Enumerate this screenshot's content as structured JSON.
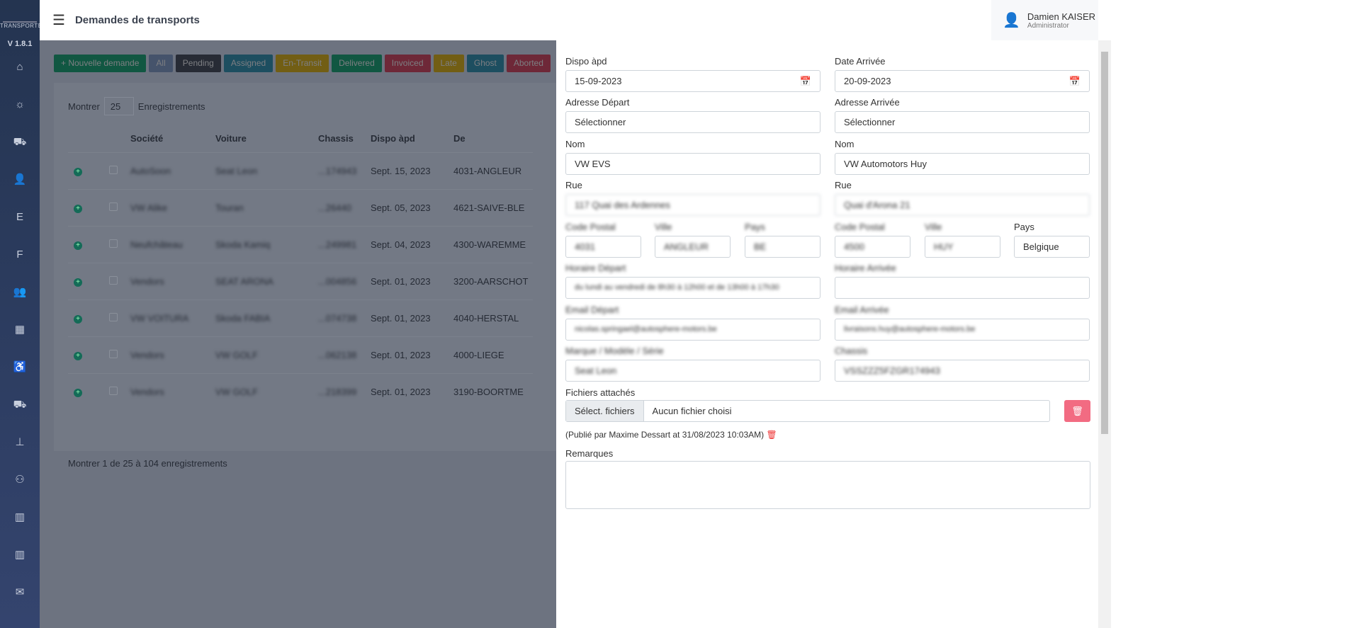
{
  "app": {
    "logo_text": "TRANSPORTER",
    "version": "V 1.8.1",
    "title": "Demandes de transports"
  },
  "user": {
    "name": "Damien KAISER",
    "role": "Administrator"
  },
  "sidebar": {
    "icons": [
      "home-icon",
      "lightbulb-icon",
      "truck-icon",
      "user-icon",
      "E",
      "F",
      "users-icon",
      "calendar-icon",
      "wheelchair-icon",
      "truck-icon",
      "sitemap-icon",
      "group-icon",
      "map-icon",
      "map-icon",
      "mail-icon"
    ]
  },
  "filters": [
    {
      "label": "+ Nouvelle demande",
      "color": "#1c8c6a"
    },
    {
      "label": "All",
      "color": "#6f86ad"
    },
    {
      "label": "Pending",
      "color": "#3f4656"
    },
    {
      "label": "Assigned",
      "color": "#2e7d9b"
    },
    {
      "label": "En-Transit",
      "color": "#b89820"
    },
    {
      "label": "Delivered",
      "color": "#1c8c6a"
    },
    {
      "label": "Invoiced",
      "color": "#b2415a"
    },
    {
      "label": "Late",
      "color": "#b89820"
    },
    {
      "label": "Ghost",
      "color": "#2e7d9b"
    },
    {
      "label": "Aborted",
      "color": "#b2415a"
    }
  ],
  "table": {
    "show_label": "Montrer",
    "page_size": "25",
    "records_label": "Enregistrements",
    "columns": [
      "Société",
      "Voiture",
      "Chassis",
      "Dispo àpd",
      "De"
    ],
    "rows": [
      [
        "AutoSoon",
        "Seat Leon",
        "...174943",
        "Sept. 15, 2023",
        "4031-ANGLEUR"
      ],
      [
        "VW Alike",
        "Touran",
        "...26440",
        "Sept. 05, 2023",
        "4621-SAIVE-BLE"
      ],
      [
        "Neufchâteau",
        "Skoda Kamiq",
        "...249981",
        "Sept. 04, 2023",
        "4300-WAREMME"
      ],
      [
        "Vendors",
        "SEAT ARONA",
        "...004856",
        "Sept. 01, 2023",
        "3200-AARSCHOT"
      ],
      [
        "VW VOITURA",
        "Skoda FABIA",
        "...074738",
        "Sept. 01, 2023",
        "4040-HERSTAL"
      ],
      [
        "Vendors",
        "VW GOLF",
        "...062138",
        "Sept. 01, 2023",
        "4000-LIEGE"
      ],
      [
        "Vendors",
        "VW GOLF",
        "...218399",
        "Sept. 01, 2023",
        "3190-BOORTME"
      ]
    ],
    "footer": "Montrer 1 de 25 à 104 enregistrements"
  },
  "form": {
    "dispo_label": "Dispo àpd",
    "dispo": "15-09-2023",
    "arrivee_label": "Date Arrivée",
    "arrivee": "20-09-2023",
    "adr_dep_label": "Adresse Départ",
    "adr_dep": "Sélectionner",
    "adr_arr_label": "Adresse Arrivée",
    "adr_arr": "Sélectionner",
    "nom_label": "Nom",
    "nom_dep": "VW EVS",
    "nom_arr": "VW Automotors Huy",
    "rue_label": "Rue",
    "rue_dep": "117 Quai des Ardennes",
    "rue_arr": "Quai d'Arona 21",
    "cp_label": "Code Postal",
    "ville_label": "Ville",
    "pays_label": "Pays",
    "cp_dep": "4031",
    "ville_dep": "ANGLEUR",
    "pays_dep": "BE",
    "cp_arr": "4500",
    "ville_arr": "HUY",
    "pays_arr": "Belgique",
    "hor_dep_label": "Horaire Départ",
    "hor_dep": "du lundi au vendredi de 8h30 à 12h00 et de 13h00 à 17h30",
    "hor_arr_label": "Horaire Arrivée",
    "hor_arr": "",
    "mail_dep_label": "Email Départ",
    "mail_dep": "nicolas.springael@autosphere-motors.be",
    "mail_arr_label": "Email Arrivée",
    "mail_arr": "livraisons.huy@autosphere-motors.be",
    "marque_label": "Marque / Modèle / Série",
    "marque": "Seat Leon",
    "chassis_label": "Chassis",
    "chassis": "VSSZZZ5FZGR174943",
    "files_label": "Fichiers attachés",
    "files_button": "Sélect. fichiers",
    "files_none": "Aucun fichier choisi",
    "published": "(Publié par Maxime Dessart at 31/08/2023 10:03AM)",
    "remarks_label": "Remarques"
  }
}
